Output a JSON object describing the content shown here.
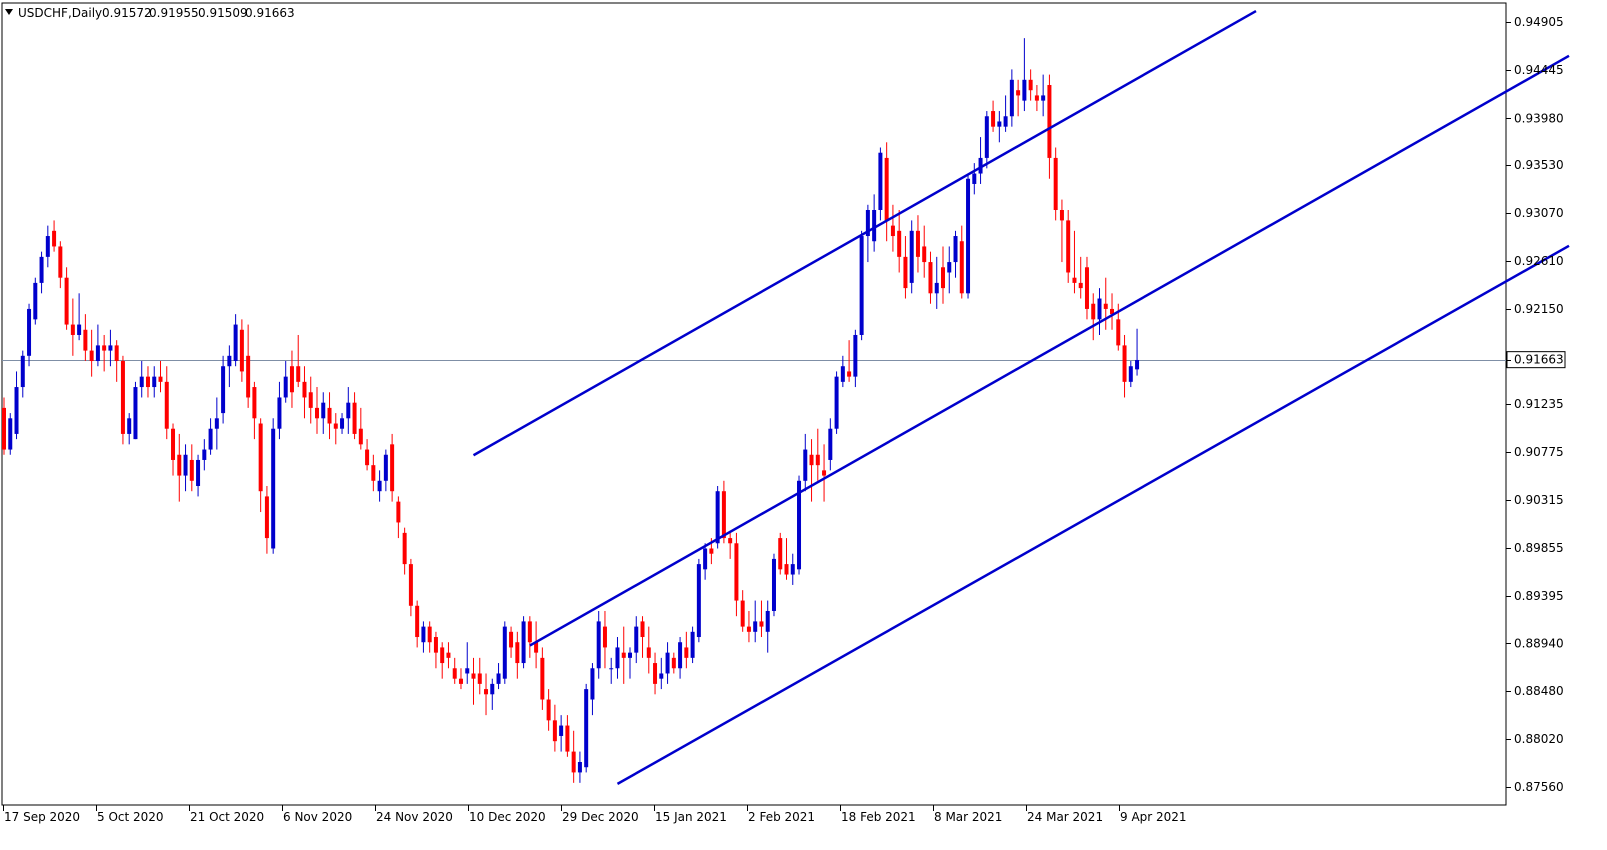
{
  "chart_data": {
    "type": "candlestick",
    "symbol": "USDCHF",
    "timeframe": "Daily",
    "header": {
      "label": "USDCHF,Daily",
      "open": "0.91572",
      "high": "0.91955",
      "low": "0.91509",
      "close": "0.91663"
    },
    "current_price": "0.91663",
    "y_ticks": [
      "0.94905",
      "0.94445",
      "0.93980",
      "0.93530",
      "0.93070",
      "0.92610",
      "0.92150",
      "0.91663",
      "0.91235",
      "0.90775",
      "0.90315",
      "0.89855",
      "0.89395",
      "0.88940",
      "0.88480",
      "0.88020",
      "0.87560"
    ],
    "x_ticks": [
      "17 Sep 2020",
      "5 Oct 2020",
      "21 Oct 2020",
      "6 Nov 2020",
      "24 Nov 2020",
      "10 Dec 2020",
      "29 Dec 2020",
      "15 Jan 2021",
      "2 Feb 2021",
      "18 Feb 2021",
      "8 Mar 2021",
      "24 Mar 2021",
      "9 Apr 2021"
    ],
    "ylim": [
      0.8749,
      0.9499
    ],
    "colors": {
      "bull": "#0000cc",
      "bear": "#ff0000",
      "trendline": "#0000cc",
      "price_line": "#7f8fa6"
    },
    "trendlines": [
      {
        "name": "upper",
        "start": {
          "bar": 75,
          "price": 0.90745
        },
        "end": {
          "bar": 200,
          "price": 0.9501
        }
      },
      {
        "name": "middle",
        "start": {
          "bar": 84,
          "price": 0.88918
        },
        "end": {
          "bar": 250,
          "price": 0.9458
        }
      },
      {
        "name": "lower",
        "start": {
          "bar": 98,
          "price": 0.8759
        },
        "end": {
          "bar": 250,
          "price": 0.92756
        }
      }
    ],
    "candles": [
      [
        0.912,
        0.913,
        0.9075,
        0.908
      ],
      [
        0.908,
        0.9115,
        0.9075,
        0.911
      ],
      [
        0.9095,
        0.9155,
        0.909,
        0.914
      ],
      [
        0.914,
        0.9175,
        0.913,
        0.917
      ],
      [
        0.917,
        0.922,
        0.916,
        0.9215
      ],
      [
        0.9205,
        0.9245,
        0.92,
        0.924
      ],
      [
        0.924,
        0.927,
        0.923,
        0.9265
      ],
      [
        0.9265,
        0.9295,
        0.9255,
        0.9285
      ],
      [
        0.929,
        0.93,
        0.927,
        0.9275
      ],
      [
        0.9275,
        0.928,
        0.9235,
        0.9245
      ],
      [
        0.9245,
        0.9255,
        0.9195,
        0.92
      ],
      [
        0.92,
        0.9225,
        0.917,
        0.919
      ],
      [
        0.919,
        0.923,
        0.9185,
        0.92
      ],
      [
        0.9195,
        0.921,
        0.9165,
        0.9175
      ],
      [
        0.9175,
        0.9195,
        0.915,
        0.9165
      ],
      [
        0.9165,
        0.92,
        0.916,
        0.918
      ],
      [
        0.918,
        0.919,
        0.9155,
        0.9175
      ],
      [
        0.9175,
        0.9195,
        0.916,
        0.918
      ],
      [
        0.918,
        0.9185,
        0.9145,
        0.9165
      ],
      [
        0.9165,
        0.917,
        0.9085,
        0.9095
      ],
      [
        0.9095,
        0.9115,
        0.9085,
        0.911
      ],
      [
        0.909,
        0.9145,
        0.909,
        0.914
      ],
      [
        0.914,
        0.9165,
        0.913,
        0.915
      ],
      [
        0.915,
        0.916,
        0.913,
        0.914
      ],
      [
        0.914,
        0.916,
        0.913,
        0.915
      ],
      [
        0.915,
        0.9165,
        0.9135,
        0.9145
      ],
      [
        0.9145,
        0.916,
        0.909,
        0.91
      ],
      [
        0.91,
        0.9105,
        0.9055,
        0.907
      ],
      [
        0.9075,
        0.9095,
        0.903,
        0.9055
      ],
      [
        0.9055,
        0.9085,
        0.904,
        0.9075
      ],
      [
        0.907,
        0.9085,
        0.904,
        0.905
      ],
      [
        0.9045,
        0.9075,
        0.9035,
        0.907
      ],
      [
        0.907,
        0.909,
        0.906,
        0.908
      ],
      [
        0.908,
        0.911,
        0.9075,
        0.91
      ],
      [
        0.91,
        0.913,
        0.908,
        0.911
      ],
      [
        0.9115,
        0.917,
        0.9105,
        0.916
      ],
      [
        0.916,
        0.918,
        0.914,
        0.917
      ],
      [
        0.9165,
        0.921,
        0.916,
        0.92
      ],
      [
        0.9195,
        0.9205,
        0.9145,
        0.9155
      ],
      [
        0.917,
        0.92,
        0.912,
        0.913
      ],
      [
        0.914,
        0.9145,
        0.909,
        0.911
      ],
      [
        0.9105,
        0.911,
        0.902,
        0.904
      ],
      [
        0.9035,
        0.9045,
        0.898,
        0.8995
      ],
      [
        0.8985,
        0.911,
        0.898,
        0.91
      ],
      [
        0.91,
        0.9145,
        0.909,
        0.913
      ],
      [
        0.913,
        0.9165,
        0.9125,
        0.915
      ],
      [
        0.916,
        0.9175,
        0.912,
        0.9135
      ],
      [
        0.916,
        0.919,
        0.914,
        0.9145
      ],
      [
        0.9145,
        0.916,
        0.911,
        0.913
      ],
      [
        0.9135,
        0.915,
        0.9105,
        0.912
      ],
      [
        0.912,
        0.914,
        0.9095,
        0.911
      ],
      [
        0.911,
        0.9135,
        0.9095,
        0.9125
      ],
      [
        0.912,
        0.9135,
        0.909,
        0.9105
      ],
      [
        0.9105,
        0.9115,
        0.9085,
        0.91
      ],
      [
        0.91,
        0.9115,
        0.9095,
        0.911
      ],
      [
        0.911,
        0.914,
        0.9095,
        0.9125
      ],
      [
        0.9125,
        0.9135,
        0.909,
        0.9095
      ],
      [
        0.91,
        0.912,
        0.908,
        0.9085
      ],
      [
        0.908,
        0.909,
        0.906,
        0.9065
      ],
      [
        0.9065,
        0.9075,
        0.904,
        0.905
      ],
      [
        0.904,
        0.906,
        0.903,
        0.905
      ],
      [
        0.905,
        0.908,
        0.904,
        0.9075
      ],
      [
        0.9085,
        0.9095,
        0.903,
        0.904
      ],
      [
        0.903,
        0.9035,
        0.8995,
        0.901
      ],
      [
        0.9,
        0.9005,
        0.896,
        0.897
      ],
      [
        0.897,
        0.8975,
        0.892,
        0.893
      ],
      [
        0.893,
        0.8935,
        0.889,
        0.89
      ],
      [
        0.8895,
        0.8915,
        0.8885,
        0.891
      ],
      [
        0.891,
        0.8915,
        0.8885,
        0.8895
      ],
      [
        0.89,
        0.8905,
        0.887,
        0.8885
      ],
      [
        0.889,
        0.8895,
        0.886,
        0.8875
      ],
      [
        0.8885,
        0.8895,
        0.887,
        0.888
      ],
      [
        0.887,
        0.888,
        0.8855,
        0.886
      ],
      [
        0.886,
        0.887,
        0.885,
        0.8855
      ],
      [
        0.8865,
        0.8895,
        0.8855,
        0.887
      ],
      [
        0.8865,
        0.888,
        0.8835,
        0.886
      ],
      [
        0.8865,
        0.888,
        0.8845,
        0.8855
      ],
      [
        0.885,
        0.8865,
        0.8825,
        0.8845
      ],
      [
        0.8845,
        0.886,
        0.883,
        0.8855
      ],
      [
        0.8855,
        0.8875,
        0.885,
        0.8865
      ],
      [
        0.886,
        0.8915,
        0.8855,
        0.891
      ],
      [
        0.8905,
        0.891,
        0.888,
        0.889
      ],
      [
        0.8895,
        0.8905,
        0.886,
        0.8875
      ],
      [
        0.8875,
        0.892,
        0.887,
        0.8915
      ],
      [
        0.8915,
        0.892,
        0.888,
        0.8895
      ],
      [
        0.8895,
        0.8915,
        0.887,
        0.8885
      ],
      [
        0.888,
        0.889,
        0.883,
        0.884
      ],
      [
        0.884,
        0.885,
        0.881,
        0.882
      ],
      [
        0.882,
        0.8835,
        0.879,
        0.88
      ],
      [
        0.8805,
        0.8825,
        0.879,
        0.8815
      ],
      [
        0.8815,
        0.8825,
        0.8785,
        0.879
      ],
      [
        0.879,
        0.881,
        0.876,
        0.877
      ],
      [
        0.877,
        0.879,
        0.876,
        0.878
      ],
      [
        0.8775,
        0.8855,
        0.877,
        0.885
      ],
      [
        0.884,
        0.8875,
        0.8825,
        0.887
      ],
      [
        0.887,
        0.8925,
        0.886,
        0.8915
      ],
      [
        0.891,
        0.8925,
        0.887,
        0.889
      ],
      [
        0.887,
        0.888,
        0.8855,
        0.887
      ],
      [
        0.887,
        0.89,
        0.886,
        0.889
      ],
      [
        0.8885,
        0.891,
        0.8855,
        0.888
      ],
      [
        0.888,
        0.889,
        0.886,
        0.8885
      ],
      [
        0.8885,
        0.892,
        0.8875,
        0.891
      ],
      [
        0.8915,
        0.892,
        0.888,
        0.89
      ],
      [
        0.889,
        0.891,
        0.8865,
        0.888
      ],
      [
        0.8875,
        0.8885,
        0.8845,
        0.8855
      ],
      [
        0.886,
        0.888,
        0.885,
        0.8865
      ],
      [
        0.8865,
        0.8895,
        0.8855,
        0.8885
      ],
      [
        0.888,
        0.8885,
        0.8865,
        0.887
      ],
      [
        0.887,
        0.89,
        0.886,
        0.8895
      ],
      [
        0.889,
        0.8905,
        0.887,
        0.888
      ],
      [
        0.888,
        0.891,
        0.8875,
        0.8905
      ],
      [
        0.89,
        0.8975,
        0.8895,
        0.897
      ],
      [
        0.8965,
        0.899,
        0.8955,
        0.8985
      ],
      [
        0.8985,
        0.8995,
        0.897,
        0.898
      ],
      [
        0.899,
        0.9045,
        0.8985,
        0.904
      ],
      [
        0.904,
        0.905,
        0.899,
        0.8995
      ],
      [
        0.8995,
        0.9,
        0.8975,
        0.899
      ],
      [
        0.899,
        0.9,
        0.892,
        0.8935
      ],
      [
        0.8935,
        0.8945,
        0.8905,
        0.891
      ],
      [
        0.891,
        0.8925,
        0.8895,
        0.8905
      ],
      [
        0.8905,
        0.8935,
        0.8895,
        0.8915
      ],
      [
        0.8915,
        0.8935,
        0.89,
        0.891
      ],
      [
        0.8905,
        0.8935,
        0.8885,
        0.8925
      ],
      [
        0.8925,
        0.898,
        0.892,
        0.8975
      ],
      [
        0.8995,
        0.9,
        0.896,
        0.8965
      ],
      [
        0.897,
        0.8995,
        0.8955,
        0.896
      ],
      [
        0.896,
        0.898,
        0.895,
        0.897
      ],
      [
        0.8965,
        0.9055,
        0.896,
        0.905
      ],
      [
        0.905,
        0.9095,
        0.904,
        0.908
      ],
      [
        0.9075,
        0.909,
        0.903,
        0.9065
      ],
      [
        0.9075,
        0.91,
        0.905,
        0.9065
      ],
      [
        0.906,
        0.9085,
        0.903,
        0.9055
      ],
      [
        0.907,
        0.911,
        0.906,
        0.91
      ],
      [
        0.91,
        0.9155,
        0.9095,
        0.915
      ],
      [
        0.9145,
        0.917,
        0.914,
        0.916
      ],
      [
        0.9155,
        0.9185,
        0.9145,
        0.915
      ],
      [
        0.915,
        0.9195,
        0.914,
        0.919
      ],
      [
        0.919,
        0.929,
        0.9185,
        0.9285
      ],
      [
        0.9285,
        0.9315,
        0.926,
        0.931
      ],
      [
        0.928,
        0.9325,
        0.927,
        0.931
      ],
      [
        0.931,
        0.937,
        0.93,
        0.9365
      ],
      [
        0.936,
        0.9375,
        0.928,
        0.93
      ],
      [
        0.9295,
        0.9315,
        0.927,
        0.9285
      ],
      [
        0.929,
        0.931,
        0.925,
        0.9265
      ],
      [
        0.9265,
        0.9285,
        0.9225,
        0.9235
      ],
      [
        0.924,
        0.93,
        0.923,
        0.929
      ],
      [
        0.929,
        0.9305,
        0.925,
        0.9265
      ],
      [
        0.9275,
        0.9295,
        0.9245,
        0.926
      ],
      [
        0.926,
        0.927,
        0.922,
        0.923
      ],
      [
        0.923,
        0.9265,
        0.9215,
        0.924
      ],
      [
        0.9255,
        0.9275,
        0.922,
        0.9235
      ],
      [
        0.925,
        0.9275,
        0.923,
        0.926
      ],
      [
        0.926,
        0.929,
        0.9245,
        0.9285
      ],
      [
        0.928,
        0.9295,
        0.9225,
        0.923
      ],
      [
        0.923,
        0.9345,
        0.9225,
        0.934
      ],
      [
        0.9335,
        0.9355,
        0.9325,
        0.9345
      ],
      [
        0.9345,
        0.938,
        0.9335,
        0.936
      ],
      [
        0.936,
        0.9405,
        0.935,
        0.94
      ],
      [
        0.9405,
        0.9415,
        0.9385,
        0.939
      ],
      [
        0.939,
        0.9405,
        0.9375,
        0.9395
      ],
      [
        0.939,
        0.942,
        0.9385,
        0.94
      ],
      [
        0.94,
        0.9445,
        0.939,
        0.9435
      ],
      [
        0.9425,
        0.9435,
        0.94,
        0.942
      ],
      [
        0.9415,
        0.9475,
        0.9405,
        0.9435
      ],
      [
        0.9435,
        0.9445,
        0.9415,
        0.9425
      ],
      [
        0.942,
        0.943,
        0.9405,
        0.9415
      ],
      [
        0.9415,
        0.944,
        0.94,
        0.942
      ],
      [
        0.943,
        0.944,
        0.934,
        0.936
      ],
      [
        0.936,
        0.937,
        0.93,
        0.931
      ],
      [
        0.931,
        0.932,
        0.926,
        0.93
      ],
      [
        0.93,
        0.931,
        0.924,
        0.925
      ],
      [
        0.9245,
        0.929,
        0.923,
        0.924
      ],
      [
        0.924,
        0.9265,
        0.9225,
        0.9235
      ],
      [
        0.9255,
        0.9265,
        0.9205,
        0.9215
      ],
      [
        0.922,
        0.923,
        0.9185,
        0.9205
      ],
      [
        0.9205,
        0.9235,
        0.919,
        0.9225
      ],
      [
        0.922,
        0.9245,
        0.9195,
        0.9215
      ],
      [
        0.9215,
        0.923,
        0.9195,
        0.921
      ],
      [
        0.9205,
        0.922,
        0.9175,
        0.918
      ],
      [
        0.918,
        0.919,
        0.913,
        0.9145
      ],
      [
        0.9145,
        0.9165,
        0.914,
        0.916
      ],
      [
        0.9157,
        0.9196,
        0.9151,
        0.9166
      ]
    ]
  }
}
